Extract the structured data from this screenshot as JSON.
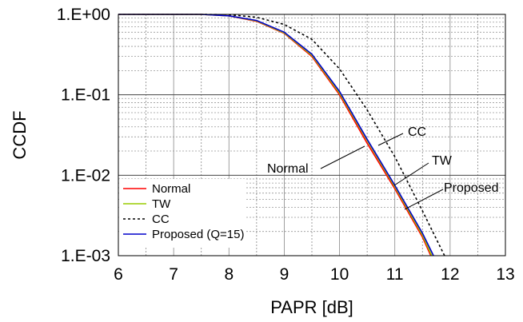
{
  "chart_data": {
    "type": "line",
    "title": "",
    "xlabel": "PAPR [dB]",
    "ylabel": "CCDF",
    "xlim": [
      6,
      13
    ],
    "ylim": [
      0.001,
      1
    ],
    "y_scale": "log",
    "grid": true,
    "x_ticks": [
      "6",
      "7",
      "8",
      "9",
      "10",
      "11",
      "12",
      "13"
    ],
    "y_ticks": [
      "1.E-03",
      "1.E-02",
      "1.E-01",
      "1.E+00"
    ],
    "legend_position": "bottom-left",
    "series": [
      {
        "name": "Normal",
        "color": "#ff0000",
        "style": "solid",
        "x": [
          6,
          7,
          7.5,
          8,
          8.5,
          9,
          9.5,
          10,
          10.5,
          11,
          11.5,
          11.65
        ],
        "y": [
          1,
          1,
          1,
          0.96,
          0.82,
          0.58,
          0.3,
          0.1,
          0.025,
          0.0068,
          0.0017,
          0.001
        ]
      },
      {
        "name": "TW",
        "color": "#99cc00",
        "style": "solid",
        "x": [
          6,
          7,
          7.5,
          8,
          8.5,
          9,
          9.5,
          10,
          10.5,
          11,
          11.5,
          11.67
        ],
        "y": [
          1,
          1,
          1,
          0.96,
          0.83,
          0.59,
          0.31,
          0.105,
          0.027,
          0.0072,
          0.0018,
          0.001
        ]
      },
      {
        "name": "CC",
        "color": "#000000",
        "style": "dashed",
        "x": [
          6,
          7,
          7.5,
          8,
          8.5,
          9,
          9.5,
          10,
          10.5,
          11,
          11.5,
          11.9
        ],
        "y": [
          1,
          1,
          1,
          0.99,
          0.92,
          0.75,
          0.49,
          0.21,
          0.065,
          0.017,
          0.0036,
          0.001
        ]
      },
      {
        "name": "Proposed (Q=15)",
        "color": "#0000cc",
        "style": "solid",
        "x": [
          6,
          7,
          7.5,
          8,
          8.5,
          9,
          9.5,
          10,
          10.5,
          11,
          11.5,
          11.7
        ],
        "y": [
          1,
          1,
          1,
          0.96,
          0.84,
          0.6,
          0.32,
          0.11,
          0.028,
          0.0075,
          0.0019,
          0.001
        ]
      }
    ],
    "annotations": [
      "CC",
      "TW",
      "Normal",
      "Proposed"
    ]
  }
}
